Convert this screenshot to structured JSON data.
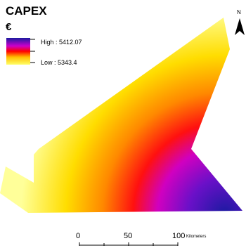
{
  "map": {
    "title": "CAPEX",
    "currency_symbol": "€"
  },
  "legend": {
    "high_label": "High : 5412.07",
    "low_label": "Low : 5343.4",
    "colors": {
      "high": "#1a1aa0",
      "mid_high": "#cc00cc",
      "mid": "#ff0000",
      "mid_low": "#ffc000",
      "low": "#ffff66"
    }
  },
  "north_arrow": {
    "label": "N"
  },
  "scale_bar": {
    "ticks": [
      "0",
      "50",
      "100"
    ],
    "unit": "Kilometers"
  }
}
